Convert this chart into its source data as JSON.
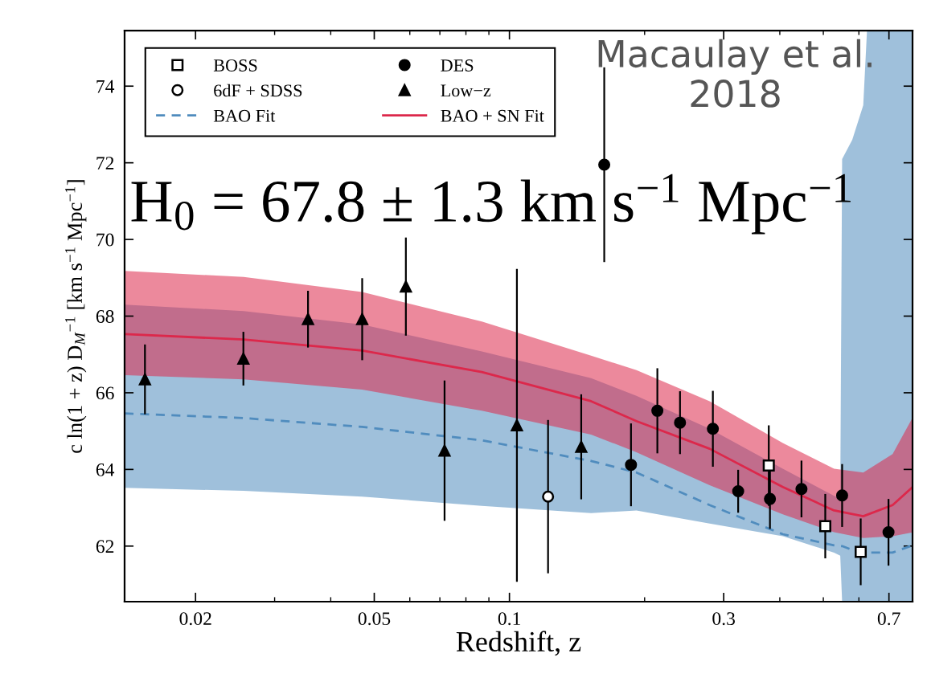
{
  "chart_data": {
    "type": "scatter",
    "xlabel": "Redshift, z",
    "ylabel": "c ln(1 + z) D$_{M}$$^{−1}$ [km s$^{−1}$ Mpc$^{−1}$]",
    "annotations": [
      "Macaulay et al.\n2018",
      "H$_{0}$ = 67.8 ± 1.3 km s$^{−1}$ Mpc$^{−1}$"
    ],
    "log": "x",
    "xlim": [
      0.0139,
      0.79
    ],
    "xticks": [
      0.02,
      0.05,
      0.1,
      0.3,
      0.7
    ],
    "ylim": [
      60.55,
      75.45
    ],
    "yticks": [
      62,
      64,
      66,
      68,
      70,
      72,
      74
    ],
    "legend": "top left",
    "grid": false,
    "series": [
      {
        "name": "BOSS",
        "marker": "square",
        "color": "#ffffff",
        "x": [
          0.378,
          0.505,
          0.6056
        ],
        "values": [
          64.1,
          62.52,
          61.85
        ],
        "errors": [
          1.05,
          0.84,
          0.87
        ]
      },
      {
        "name": "6dF + SDSS",
        "marker": "circle",
        "color": "#ffffff",
        "x": [
          0.1219
        ],
        "values": [
          63.29
        ],
        "errors": [
          2.0
        ]
      },
      {
        "name": "BAO Fit",
        "type": "line",
        "line_style": "dashed",
        "color": "#508cbe",
        "x": [
          0.0139,
          0.0256,
          0.047,
          0.0868,
          0.152,
          0.1918,
          0.2791,
          0.4062,
          0.5283,
          0.5453,
          0.5506,
          0.58,
          0.6136,
          0.6255,
          0.7133,
          0.79
        ],
        "values": [
          65.46,
          65.34,
          65.11,
          64.76,
          64.22,
          63.92,
          63.07,
          62.31,
          62.02,
          62.0,
          62.0,
          61.9,
          61.83,
          61.83,
          61.83,
          62.02
        ],
        "lower": [
          63.52,
          63.44,
          63.29,
          63.05,
          62.86,
          62.93,
          62.59,
          62.26,
          61.83,
          61.75,
          60.55,
          60.55,
          60.55,
          60.55,
          60.55,
          60.55
        ],
        "upper": [
          68.3,
          68.13,
          67.78,
          67.08,
          66.38,
          65.92,
          65.06,
          64.02,
          63.31,
          63.25,
          72.1,
          72.6,
          73.5,
          75.45,
          75.45,
          75.45
        ]
      },
      {
        "name": "DES",
        "marker": "circle",
        "color": "#000000",
        "x": [
          0.1626,
          0.1865,
          0.2135,
          0.2398,
          0.2838,
          0.3231,
          0.3803,
          0.447,
          0.5506,
          0.6984
        ],
        "values": [
          71.95,
          64.12,
          65.53,
          65.22,
          65.06,
          63.43,
          63.23,
          63.49,
          63.32,
          62.36
        ],
        "errors": [
          2.54,
          1.08,
          1.11,
          0.82,
          0.99,
          0.56,
          0.78,
          0.74,
          0.82,
          0.87
        ]
      },
      {
        "name": "Low−z",
        "marker": "triangle",
        "color": "#000000",
        "x": [
          0.01543,
          0.02556,
          0.0356,
          0.047,
          0.0588,
          0.0717,
          0.1039,
          0.1445
        ],
        "values": [
          66.35,
          66.89,
          67.92,
          67.92,
          68.77,
          64.49,
          65.15,
          64.59
        ],
        "errors": [
          0.91,
          0.7,
          0.74,
          1.07,
          1.28,
          1.83,
          4.08,
          1.37
        ]
      },
      {
        "name": "BAO + SN Fit",
        "type": "line",
        "line_style": "solid",
        "color": "#dc284b",
        "x": [
          0.0139,
          0.0256,
          0.047,
          0.0868,
          0.152,
          0.1918,
          0.2791,
          0.4062,
          0.5283,
          0.6136,
          0.7133,
          0.79
        ],
        "values": [
          67.53,
          67.39,
          67.1,
          66.54,
          65.78,
          65.26,
          64.54,
          63.54,
          62.93,
          62.78,
          63.07,
          63.54
        ],
        "lower": [
          66.46,
          66.35,
          66.08,
          65.53,
          64.91,
          64.45,
          63.59,
          62.83,
          62.36,
          62.21,
          62.26,
          62.36
        ],
        "upper": [
          69.18,
          69.02,
          68.63,
          67.86,
          66.97,
          66.59,
          65.78,
          64.69,
          64.02,
          63.92,
          64.4,
          65.35
        ]
      }
    ]
  }
}
